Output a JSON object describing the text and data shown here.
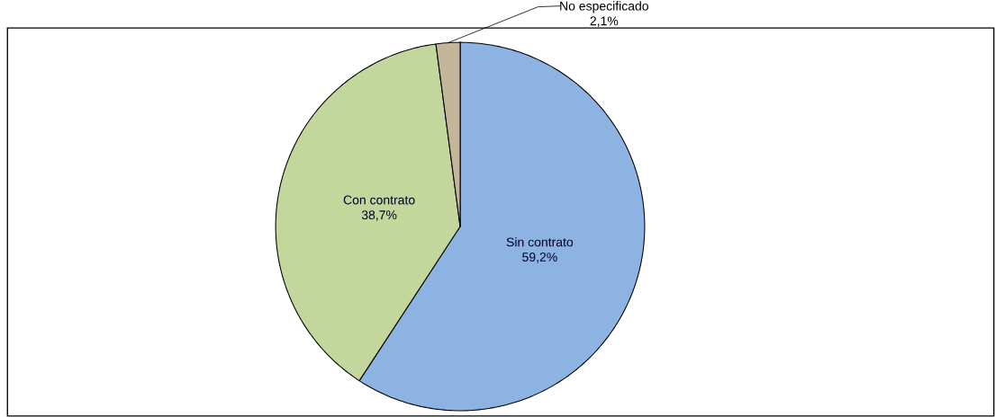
{
  "chart_data": {
    "type": "pie",
    "categories": [
      "Sin contrato",
      "Con contrato",
      "No especificado"
    ],
    "values": [
      59.2,
      38.7,
      2.1
    ],
    "value_labels": [
      "59,2%",
      "38,7%",
      "2,1%"
    ],
    "colors": [
      "#8db3e2",
      "#c3d69b",
      "#c4b59b"
    ]
  }
}
